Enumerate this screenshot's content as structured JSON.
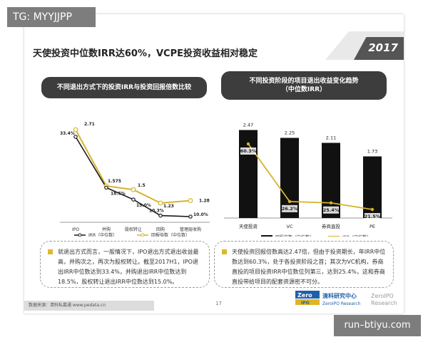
{
  "overlay": {
    "top_left_tag": "TG: MYYJJPP",
    "bottom_right_tag": "run–btiyu.com"
  },
  "slide": {
    "title": "天使投资中位数IRR达60%，VCPE投资收益相对稳定",
    "year_badge": "2017",
    "page_number": "17",
    "footer_source": "数据来源：清科私募通 www.pedata.cn",
    "logo": {
      "name": "清科研究中心",
      "en_line1": "ZeroIPO Research",
      "brand": "Zero",
      "brand2": "IPO",
      "en_side1": "ZeroIPO",
      "en_side2": "Research"
    }
  },
  "left_panel": {
    "heading": "不同退出方式下的投资IRR与投资回报倍数比较",
    "note": "就退出方式而言，一般情况下，IPO退出方式退出收益最高，并购次之，再次为股权转让。截至2017H1，IPO退出IRR中位数达到33.4%，并购退出IRR中位数达到18.5%，股权转让退出IRR中位数达到15.0%。"
  },
  "right_panel": {
    "heading_line1": "不同投资阶段的项目退出收益变化趋势",
    "heading_line2": "（中位数IRR）",
    "note": "天使投资回报倍数高达2.47倍，但由于投资期长，年IRR中位数达到60.3%，处于各投资阶段之首；其次为VC机构，券商直投的项目投资IRR中位数位列第三，达到25.4%，这和券商直投带给项目的配套资源密不可分。"
  },
  "chart_data": [
    {
      "type": "line",
      "categories": [
        "IPO",
        "并购",
        "股权转让",
        "回购",
        "管理层收购"
      ],
      "series": [
        {
          "name": "IRR（中位数）",
          "color": "#1a1a1a",
          "values": [
            33.4,
            18.5,
            15.0,
            10.3,
            10.0
          ],
          "labels": [
            "33.4%",
            "18.5%",
            "15.0%",
            "10.3%",
            "10.0%"
          ]
        },
        {
          "name": "回报倍数（中位数）",
          "color": "#d7b32a",
          "values": [
            2.71,
            1.575,
            1.5,
            1.23,
            1.28
          ],
          "labels": [
            "2.71",
            "1.575",
            "1.5",
            "1.23",
            "1.28"
          ]
        }
      ],
      "legend_position": "bottom",
      "grid": false
    },
    {
      "type": "bar",
      "categories": [
        "天使投资",
        "VC",
        "券商直投",
        "PE"
      ],
      "series": [
        {
          "name": "回报倍数（中位数）",
          "kind": "bar",
          "color": "#111111",
          "values": [
            2.47,
            2.25,
            2.11,
            1.73
          ],
          "labels": [
            "2.47",
            "2.25",
            "2.11",
            "1.73"
          ]
        },
        {
          "name": "IRR（中位数）",
          "kind": "line",
          "color": "#d7b32a",
          "values": [
            60.3,
            26.2,
            25.4,
            21.5
          ],
          "labels": [
            "60.3%",
            "26.2%",
            "25.4%",
            "21.5%"
          ]
        }
      ],
      "legend_position": "bottom",
      "grid": false
    }
  ]
}
